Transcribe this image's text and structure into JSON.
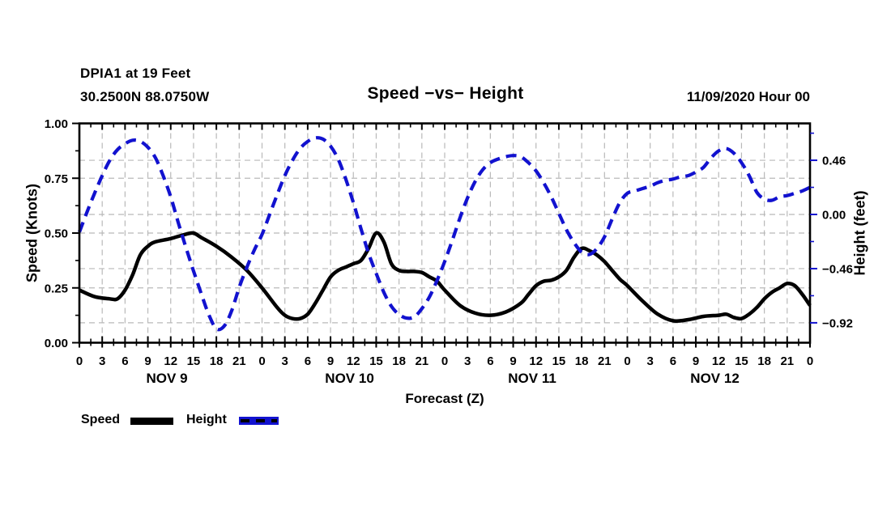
{
  "chart_data": {
    "type": "line",
    "station": "DPIA1 at 19 Feet",
    "location": "30.2500N 88.0750W",
    "title": "Speed −vs− Height",
    "issued": "11/09/2020 Hour 00",
    "xlabel": "Forecast (Z)",
    "x_range_hours": [
      0,
      96
    ],
    "x_major_step_hours": 3,
    "x_minor_step_hours": 1.5,
    "x_hour_labels": [
      "0",
      "3",
      "6",
      "9",
      "12",
      "15",
      "18",
      "21",
      "0",
      "3",
      "6",
      "9",
      "12",
      "15",
      "18",
      "21",
      "0",
      "3",
      "6",
      "9",
      "12",
      "15",
      "18",
      "21",
      "0",
      "3",
      "6",
      "9",
      "12",
      "15",
      "18",
      "21",
      "0"
    ],
    "x_day_labels": [
      {
        "label": "NOV 9",
        "center_hour": 11.5
      },
      {
        "label": "NOV 10",
        "center_hour": 35.5
      },
      {
        "label": "NOV 11",
        "center_hour": 59.5
      },
      {
        "label": "NOV 12",
        "center_hour": 83.5
      }
    ],
    "y_left": {
      "label": "Speed (Knots)",
      "range": [
        0,
        1
      ],
      "ticks": [
        {
          "v": 0.0,
          "label": "0.00"
        },
        {
          "v": 0.25,
          "label": "0.25"
        },
        {
          "v": 0.5,
          "label": "0.50"
        },
        {
          "v": 0.75,
          "label": "0.75"
        },
        {
          "v": 1.0,
          "label": "1.00"
        }
      ],
      "minor_ticks": [
        0.125,
        0.375,
        0.625,
        0.875
      ],
      "grid_at": [
        0.25,
        0.5,
        0.75
      ]
    },
    "y_right": {
      "label": "Height (feet)",
      "range": [
        -1.089,
        0.773
      ],
      "ticks": [
        {
          "v": 0.46,
          "label": "0.46"
        },
        {
          "v": 0.0,
          "label": "0.00"
        },
        {
          "v": -0.46,
          "label": "−0.46"
        },
        {
          "v": -0.92,
          "label": "−0.92"
        }
      ],
      "minor_ticks": [
        0.69,
        0.23,
        -0.23,
        -0.69
      ],
      "grid_at": [
        0.46,
        0.0,
        -0.46,
        -0.92
      ]
    },
    "grid": {
      "vertical_every_hours": 3,
      "color": "#b9b9b9",
      "dashed": true
    },
    "legend": [
      {
        "name": "Speed",
        "color": "#000000",
        "style": "solid"
      },
      {
        "name": "Height",
        "color": "#1212cf",
        "style": "dashed"
      }
    ],
    "series": [
      {
        "name": "Speed",
        "axis": "left",
        "color": "#000000",
        "style": "solid",
        "width": 4.5,
        "points": [
          [
            0,
            0.24
          ],
          [
            2,
            0.21
          ],
          [
            4,
            0.2
          ],
          [
            5,
            0.2
          ],
          [
            6,
            0.24
          ],
          [
            7,
            0.31
          ],
          [
            8,
            0.4
          ],
          [
            9,
            0.44
          ],
          [
            10,
            0.46
          ],
          [
            12,
            0.475
          ],
          [
            14,
            0.495
          ],
          [
            15,
            0.5
          ],
          [
            16,
            0.48
          ],
          [
            18,
            0.44
          ],
          [
            20,
            0.39
          ],
          [
            22,
            0.33
          ],
          [
            24,
            0.25
          ],
          [
            26,
            0.16
          ],
          [
            27,
            0.125
          ],
          [
            28,
            0.11
          ],
          [
            29,
            0.11
          ],
          [
            30,
            0.13
          ],
          [
            31,
            0.18
          ],
          [
            32,
            0.24
          ],
          [
            33,
            0.3
          ],
          [
            34,
            0.33
          ],
          [
            35,
            0.345
          ],
          [
            36,
            0.36
          ],
          [
            37,
            0.375
          ],
          [
            38,
            0.43
          ],
          [
            39,
            0.5
          ],
          [
            40,
            0.46
          ],
          [
            41,
            0.36
          ],
          [
            42,
            0.33
          ],
          [
            43,
            0.325
          ],
          [
            44,
            0.325
          ],
          [
            45,
            0.32
          ],
          [
            46,
            0.3
          ],
          [
            47,
            0.28
          ],
          [
            48,
            0.24
          ],
          [
            50,
            0.17
          ],
          [
            52,
            0.135
          ],
          [
            54,
            0.125
          ],
          [
            56,
            0.14
          ],
          [
            58,
            0.18
          ],
          [
            59,
            0.22
          ],
          [
            60,
            0.26
          ],
          [
            61,
            0.28
          ],
          [
            62,
            0.285
          ],
          [
            63,
            0.3
          ],
          [
            64,
            0.33
          ],
          [
            65,
            0.39
          ],
          [
            66,
            0.43
          ],
          [
            67,
            0.42
          ],
          [
            68,
            0.4
          ],
          [
            69,
            0.37
          ],
          [
            70,
            0.33
          ],
          [
            71,
            0.29
          ],
          [
            72,
            0.26
          ],
          [
            74,
            0.19
          ],
          [
            76,
            0.13
          ],
          [
            78,
            0.1
          ],
          [
            80,
            0.105
          ],
          [
            82,
            0.12
          ],
          [
            84,
            0.125
          ],
          [
            85,
            0.13
          ],
          [
            86,
            0.115
          ],
          [
            87,
            0.11
          ],
          [
            88,
            0.13
          ],
          [
            89,
            0.16
          ],
          [
            90,
            0.2
          ],
          [
            91,
            0.23
          ],
          [
            92,
            0.25
          ],
          [
            93,
            0.27
          ],
          [
            94,
            0.26
          ],
          [
            95,
            0.22
          ],
          [
            96,
            0.17
          ]
        ]
      },
      {
        "name": "Height",
        "axis": "right",
        "color": "#1212cf",
        "style": "dashed",
        "width": 4.2,
        "points": [
          [
            0,
            -0.15
          ],
          [
            1,
            0.02
          ],
          [
            2,
            0.18
          ],
          [
            3,
            0.33
          ],
          [
            4,
            0.46
          ],
          [
            5,
            0.55
          ],
          [
            6,
            0.6
          ],
          [
            7,
            0.63
          ],
          [
            8,
            0.62
          ],
          [
            9,
            0.57
          ],
          [
            10,
            0.48
          ],
          [
            11,
            0.33
          ],
          [
            12,
            0.15
          ],
          [
            13,
            -0.07
          ],
          [
            14,
            -0.28
          ],
          [
            15,
            -0.48
          ],
          [
            16,
            -0.67
          ],
          [
            17,
            -0.85
          ],
          [
            18,
            -0.97
          ],
          [
            19,
            -0.95
          ],
          [
            20,
            -0.82
          ],
          [
            21,
            -0.62
          ],
          [
            22,
            -0.45
          ],
          [
            23,
            -0.3
          ],
          [
            24,
            -0.17
          ],
          [
            25,
            0.0
          ],
          [
            26,
            0.17
          ],
          [
            27,
            0.33
          ],
          [
            28,
            0.46
          ],
          [
            29,
            0.56
          ],
          [
            30,
            0.62
          ],
          [
            31,
            0.65
          ],
          [
            32,
            0.64
          ],
          [
            33,
            0.58
          ],
          [
            34,
            0.47
          ],
          [
            35,
            0.3
          ],
          [
            36,
            0.1
          ],
          [
            37,
            -0.12
          ],
          [
            38,
            -0.33
          ],
          [
            39,
            -0.5
          ],
          [
            40,
            -0.66
          ],
          [
            41,
            -0.78
          ],
          [
            42,
            -0.85
          ],
          [
            43,
            -0.88
          ],
          [
            44,
            -0.87
          ],
          [
            45,
            -0.8
          ],
          [
            46,
            -0.7
          ],
          [
            47,
            -0.56
          ],
          [
            48,
            -0.4
          ],
          [
            49,
            -0.22
          ],
          [
            50,
            -0.03
          ],
          [
            51,
            0.14
          ],
          [
            52,
            0.28
          ],
          [
            53,
            0.38
          ],
          [
            54,
            0.44
          ],
          [
            55,
            0.47
          ],
          [
            56,
            0.49
          ],
          [
            57,
            0.5
          ],
          [
            58,
            0.49
          ],
          [
            59,
            0.44
          ],
          [
            60,
            0.37
          ],
          [
            61,
            0.27
          ],
          [
            62,
            0.15
          ],
          [
            63,
            0.01
          ],
          [
            64,
            -0.13
          ],
          [
            65,
            -0.24
          ],
          [
            66,
            -0.32
          ],
          [
            67,
            -0.34
          ],
          [
            68,
            -0.29
          ],
          [
            69,
            -0.19
          ],
          [
            70,
            -0.04
          ],
          [
            71,
            0.1
          ],
          [
            72,
            0.18
          ],
          [
            73,
            0.2
          ],
          [
            74,
            0.22
          ],
          [
            75,
            0.24
          ],
          [
            76,
            0.27
          ],
          [
            77,
            0.29
          ],
          [
            78,
            0.3
          ],
          [
            79,
            0.32
          ],
          [
            80,
            0.33
          ],
          [
            81,
            0.36
          ],
          [
            82,
            0.4
          ],
          [
            83,
            0.48
          ],
          [
            84,
            0.54
          ],
          [
            85,
            0.56
          ],
          [
            86,
            0.52
          ],
          [
            87,
            0.44
          ],
          [
            88,
            0.33
          ],
          [
            89,
            0.19
          ],
          [
            90,
            0.13
          ],
          [
            91,
            0.12
          ],
          [
            92,
            0.15
          ],
          [
            93,
            0.16
          ],
          [
            94,
            0.18
          ],
          [
            95,
            0.2
          ],
          [
            96,
            0.23
          ]
        ]
      }
    ]
  }
}
